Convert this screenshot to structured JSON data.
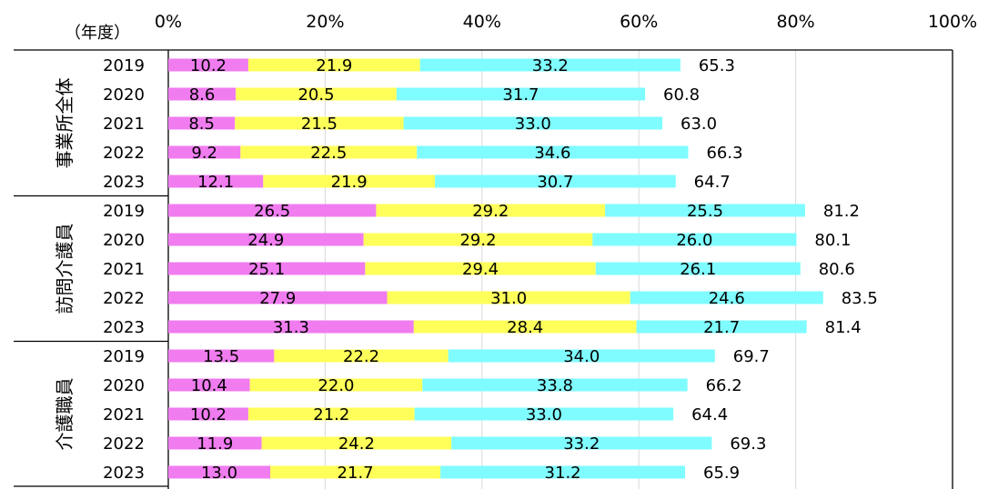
{
  "chart_data": {
    "type": "bar",
    "orientation": "horizontal",
    "stacked": true,
    "axis_unit_label": "（年度）",
    "xlim": [
      0,
      100
    ],
    "x_ticks": [
      "0%",
      "20%",
      "40%",
      "60%",
      "80%",
      "100%"
    ],
    "grid": true,
    "series_colors": [
      "#f07cf0",
      "#ffff5a",
      "#7ffcff"
    ],
    "groups": [
      {
        "name": "事業所全体",
        "rows": [
          {
            "year": "2019",
            "values": [
              10.2,
              21.9,
              33.2
            ],
            "total": 65.3
          },
          {
            "year": "2020",
            "values": [
              8.6,
              20.5,
              31.7
            ],
            "total": 60.8
          },
          {
            "year": "2021",
            "values": [
              8.5,
              21.5,
              33.0
            ],
            "total": 63.0
          },
          {
            "year": "2022",
            "values": [
              9.2,
              22.5,
              34.6
            ],
            "total": 66.3
          },
          {
            "year": "2023",
            "values": [
              12.1,
              21.9,
              30.7
            ],
            "total": 64.7
          }
        ]
      },
      {
        "name": "訪問介護員",
        "rows": [
          {
            "year": "2019",
            "values": [
              26.5,
              29.2,
              25.5
            ],
            "total": 81.2
          },
          {
            "year": "2020",
            "values": [
              24.9,
              29.2,
              26.0
            ],
            "total": 80.1
          },
          {
            "year": "2021",
            "values": [
              25.1,
              29.4,
              26.1
            ],
            "total": 80.6
          },
          {
            "year": "2022",
            "values": [
              27.9,
              31.0,
              24.6
            ],
            "total": 83.5
          },
          {
            "year": "2023",
            "values": [
              31.3,
              28.4,
              21.7
            ],
            "total": 81.4
          }
        ]
      },
      {
        "name": "介護職員",
        "rows": [
          {
            "year": "2019",
            "values": [
              13.5,
              22.2,
              34.0
            ],
            "total": 69.7
          },
          {
            "year": "2020",
            "values": [
              10.4,
              22.0,
              33.8
            ],
            "total": 66.2
          },
          {
            "year": "2021",
            "values": [
              10.2,
              21.2,
              33.0
            ],
            "total": 64.4
          },
          {
            "year": "2022",
            "values": [
              11.9,
              24.2,
              33.2
            ],
            "total": 69.3
          },
          {
            "year": "2023",
            "values": [
              13.0,
              21.7,
              31.2
            ],
            "total": 65.9
          }
        ]
      }
    ]
  }
}
